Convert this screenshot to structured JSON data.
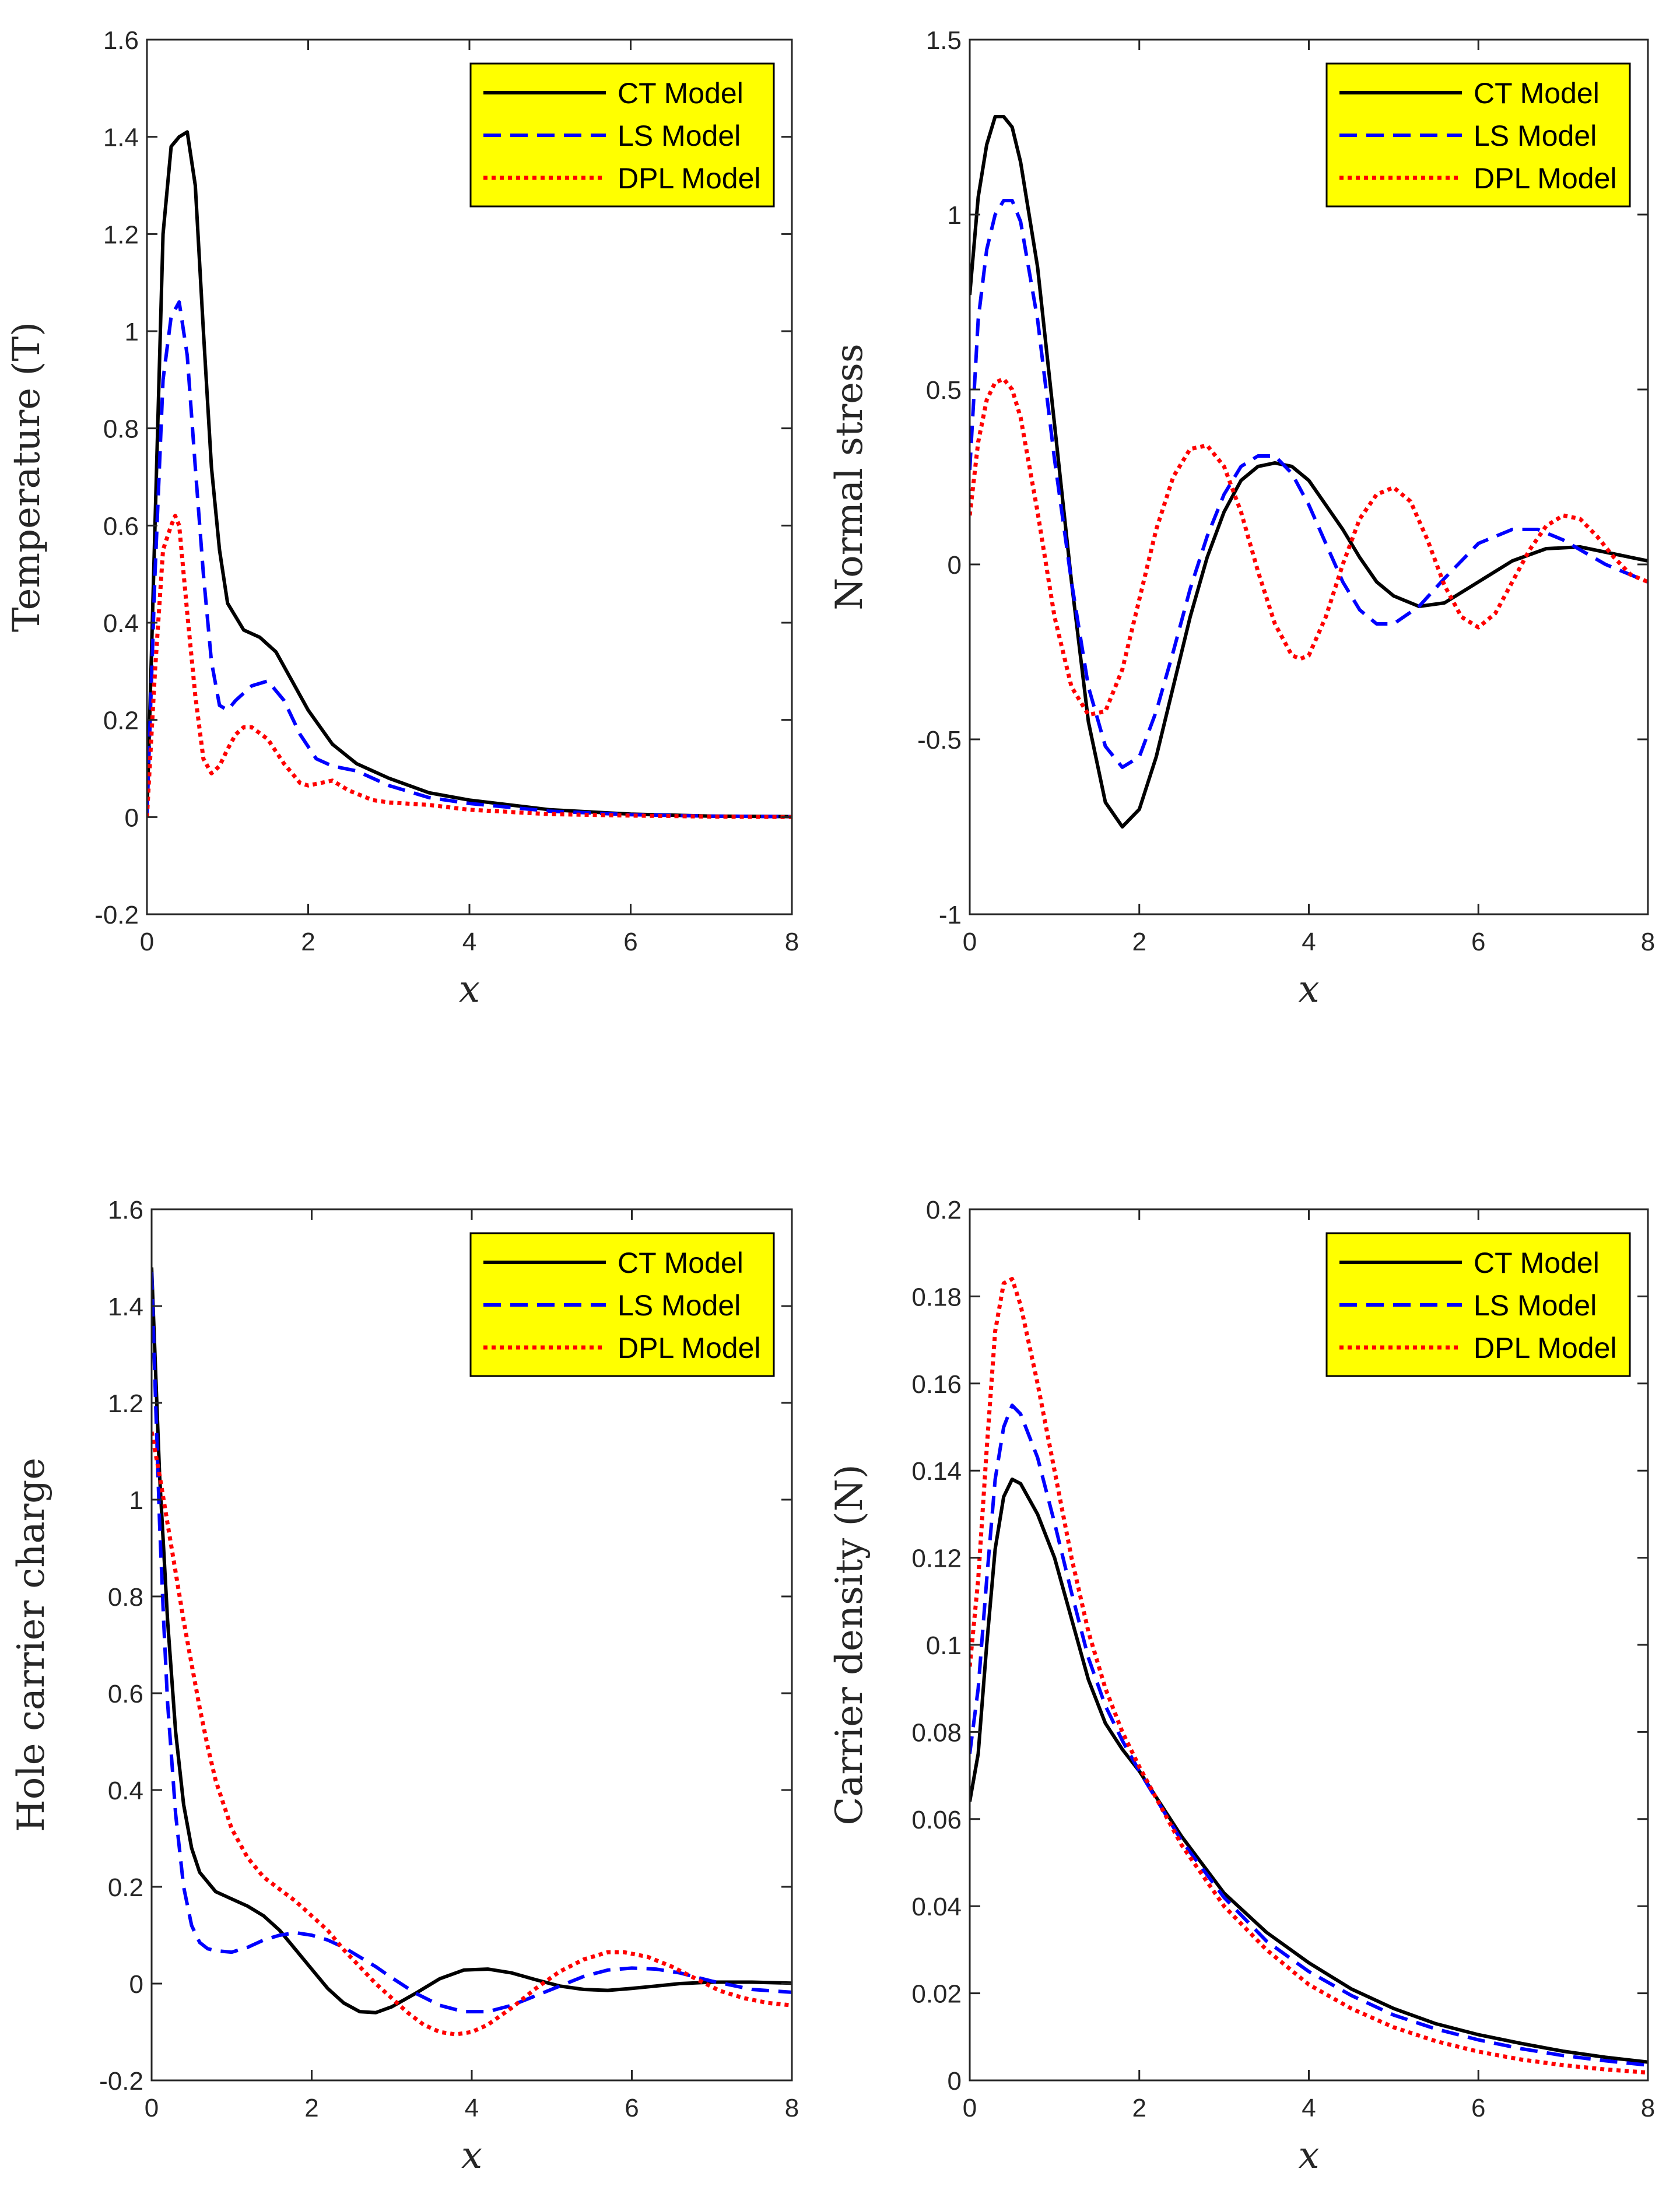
{
  "colors": {
    "ct": "#000000",
    "ls": "#0000ff",
    "dpl": "#ff0000",
    "legend_bg": "#ffff00",
    "axis": "#262626"
  },
  "chart_data": [
    {
      "type": "line",
      "xlabel": "x",
      "ylabel": "Temperature (T)",
      "xlim": [
        0,
        8
      ],
      "ylim": [
        -0.2,
        1.6
      ],
      "xticks": [
        "0",
        "2",
        "4",
        "6",
        "8"
      ],
      "yticks": [
        "-0.2",
        "0",
        "0.2",
        "0.4",
        "0.6",
        "0.8",
        "1",
        "1.2",
        "1.4",
        "1.6"
      ],
      "legend_location": "top-right",
      "series": [
        {
          "name": "CT Model",
          "style": "solid",
          "color": "#000000",
          "x": [
            0,
            0.1,
            0.2,
            0.3,
            0.4,
            0.5,
            0.6,
            0.7,
            0.8,
            0.9,
            1.0,
            1.2,
            1.4,
            1.6,
            1.8,
            2.0,
            2.3,
            2.6,
            3.0,
            3.5,
            4.0,
            5.0,
            6.0,
            7.0,
            8.0
          ],
          "y": [
            0,
            0.6,
            1.2,
            1.38,
            1.4,
            1.41,
            1.3,
            1.0,
            0.72,
            0.55,
            0.44,
            0.385,
            0.37,
            0.34,
            0.28,
            0.22,
            0.15,
            0.11,
            0.08,
            0.05,
            0.035,
            0.015,
            0.006,
            0.002,
            0.001
          ]
        },
        {
          "name": "LS Model",
          "style": "dashed",
          "color": "#0000ff",
          "x": [
            0,
            0.1,
            0.2,
            0.3,
            0.4,
            0.5,
            0.6,
            0.7,
            0.8,
            0.9,
            1.0,
            1.1,
            1.3,
            1.5,
            1.7,
            1.9,
            2.1,
            2.3,
            2.6,
            3.0,
            3.5,
            4.0,
            5.0,
            6.0,
            7.0,
            8.0
          ],
          "y": [
            0,
            0.5,
            0.9,
            1.03,
            1.06,
            0.95,
            0.72,
            0.5,
            0.32,
            0.23,
            0.22,
            0.24,
            0.27,
            0.28,
            0.24,
            0.17,
            0.12,
            0.105,
            0.095,
            0.065,
            0.04,
            0.028,
            0.012,
            0.005,
            0.002,
            0.001
          ]
        },
        {
          "name": "DPL Model",
          "style": "dotted",
          "color": "#ff0000",
          "x": [
            0,
            0.1,
            0.2,
            0.3,
            0.35,
            0.4,
            0.5,
            0.6,
            0.7,
            0.8,
            0.9,
            1.0,
            1.1,
            1.2,
            1.3,
            1.5,
            1.7,
            1.9,
            2.0,
            2.3,
            2.5,
            2.8,
            3.0,
            3.5,
            4.0,
            5.0,
            6.0,
            7.0,
            8.0
          ],
          "y": [
            0,
            0.3,
            0.55,
            0.6,
            0.62,
            0.6,
            0.42,
            0.25,
            0.12,
            0.09,
            0.105,
            0.14,
            0.17,
            0.185,
            0.185,
            0.16,
            0.11,
            0.07,
            0.065,
            0.075,
            0.055,
            0.035,
            0.03,
            0.025,
            0.015,
            0.006,
            0.003,
            0.001,
            0.0
          ]
        }
      ]
    },
    {
      "type": "line",
      "xlabel": "x",
      "ylabel": "Normal stress",
      "xlim": [
        0,
        8
      ],
      "ylim": [
        -1,
        1.5
      ],
      "xticks": [
        "0",
        "2",
        "4",
        "6",
        "8"
      ],
      "yticks": [
        "-1",
        "-0.5",
        "0",
        "0.5",
        "1",
        "1.5"
      ],
      "legend_location": "top-right",
      "series": [
        {
          "name": "CT Model",
          "style": "solid",
          "color": "#000000",
          "x": [
            0,
            0.1,
            0.2,
            0.3,
            0.4,
            0.5,
            0.6,
            0.8,
            1.0,
            1.2,
            1.4,
            1.6,
            1.8,
            2.0,
            2.2,
            2.4,
            2.6,
            2.8,
            3.0,
            3.2,
            3.4,
            3.6,
            3.8,
            4.0,
            4.2,
            4.4,
            4.6,
            4.8,
            5.0,
            5.3,
            5.6,
            6.0,
            6.4,
            6.8,
            7.2,
            7.6,
            8.0
          ],
          "y": [
            0.77,
            1.05,
            1.2,
            1.28,
            1.28,
            1.25,
            1.15,
            0.85,
            0.4,
            -0.05,
            -0.45,
            -0.68,
            -0.75,
            -0.7,
            -0.55,
            -0.35,
            -0.15,
            0.02,
            0.15,
            0.24,
            0.28,
            0.29,
            0.28,
            0.24,
            0.17,
            0.1,
            0.02,
            -0.05,
            -0.09,
            -0.12,
            -0.11,
            -0.05,
            0.01,
            0.045,
            0.05,
            0.03,
            0.01
          ]
        },
        {
          "name": "LS Model",
          "style": "dashed",
          "color": "#0000ff",
          "x": [
            0,
            0.1,
            0.2,
            0.3,
            0.4,
            0.5,
            0.6,
            0.8,
            1.0,
            1.2,
            1.4,
            1.6,
            1.8,
            2.0,
            2.2,
            2.4,
            2.6,
            2.8,
            3.0,
            3.2,
            3.4,
            3.6,
            3.8,
            4.0,
            4.2,
            4.4,
            4.6,
            4.8,
            5.0,
            5.3,
            5.6,
            6.0,
            6.4,
            6.7,
            7.0,
            7.5,
            8.0
          ],
          "y": [
            0.27,
            0.7,
            0.9,
            1.0,
            1.04,
            1.04,
            0.98,
            0.7,
            0.3,
            -0.05,
            -0.35,
            -0.52,
            -0.58,
            -0.55,
            -0.42,
            -0.25,
            -0.07,
            0.08,
            0.2,
            0.28,
            0.31,
            0.31,
            0.26,
            0.17,
            0.06,
            -0.05,
            -0.13,
            -0.17,
            -0.17,
            -0.12,
            -0.04,
            0.06,
            0.1,
            0.1,
            0.07,
            0.0,
            -0.05
          ]
        },
        {
          "name": "DPL Model",
          "style": "dotted",
          "color": "#ff0000",
          "x": [
            0,
            0.1,
            0.2,
            0.3,
            0.4,
            0.5,
            0.6,
            0.8,
            1.0,
            1.2,
            1.4,
            1.6,
            1.8,
            2.0,
            2.2,
            2.4,
            2.6,
            2.8,
            3.0,
            3.2,
            3.4,
            3.6,
            3.8,
            3.9,
            4.0,
            4.2,
            4.4,
            4.6,
            4.8,
            5.0,
            5.2,
            5.4,
            5.6,
            5.8,
            6.0,
            6.2,
            6.4,
            6.6,
            6.8,
            7.0,
            7.2,
            7.4,
            7.6,
            7.8,
            8.0
          ],
          "y": [
            0.14,
            0.35,
            0.47,
            0.52,
            0.53,
            0.5,
            0.42,
            0.15,
            -0.15,
            -0.35,
            -0.43,
            -0.42,
            -0.3,
            -0.1,
            0.1,
            0.25,
            0.33,
            0.34,
            0.28,
            0.15,
            -0.02,
            -0.17,
            -0.26,
            -0.27,
            -0.26,
            -0.15,
            0.0,
            0.13,
            0.2,
            0.22,
            0.18,
            0.07,
            -0.06,
            -0.15,
            -0.18,
            -0.14,
            -0.05,
            0.04,
            0.11,
            0.14,
            0.13,
            0.08,
            0.02,
            -0.03,
            -0.05
          ]
        }
      ]
    },
    {
      "type": "line",
      "xlabel": "x",
      "ylabel": "Hole carrier charge",
      "xlim": [
        0,
        8
      ],
      "ylim": [
        -0.2,
        1.6
      ],
      "xticks": [
        "0",
        "2",
        "4",
        "6",
        "8"
      ],
      "yticks": [
        "-0.2",
        "0",
        "0.2",
        "0.4",
        "0.6",
        "0.8",
        "1",
        "1.2",
        "1.4",
        "1.6"
      ],
      "legend_location": "top-right",
      "series": [
        {
          "name": "CT Model",
          "style": "solid",
          "color": "#000000",
          "x": [
            0,
            0.1,
            0.2,
            0.3,
            0.4,
            0.5,
            0.6,
            0.8,
            1.0,
            1.2,
            1.4,
            1.6,
            1.8,
            2.0,
            2.2,
            2.4,
            2.6,
            2.8,
            3.0,
            3.3,
            3.6,
            3.9,
            4.2,
            4.5,
            4.8,
            5.1,
            5.4,
            5.7,
            6.0,
            6.3,
            6.6,
            7.0,
            7.5,
            8.0
          ],
          "y": [
            1.48,
            1.05,
            0.75,
            0.52,
            0.37,
            0.28,
            0.23,
            0.19,
            0.175,
            0.16,
            0.14,
            0.11,
            0.07,
            0.03,
            -0.01,
            -0.04,
            -0.058,
            -0.06,
            -0.048,
            -0.02,
            0.01,
            0.028,
            0.03,
            0.022,
            0.008,
            -0.005,
            -0.012,
            -0.014,
            -0.01,
            -0.005,
            0.0,
            0.003,
            0.003,
            0.001
          ]
        },
        {
          "name": "LS Model",
          "style": "dashed",
          "color": "#0000ff",
          "x": [
            0,
            0.05,
            0.1,
            0.15,
            0.2,
            0.3,
            0.4,
            0.5,
            0.6,
            0.7,
            0.8,
            1.0,
            1.2,
            1.4,
            1.6,
            1.8,
            2.0,
            2.2,
            2.4,
            2.6,
            2.8,
            3.0,
            3.3,
            3.6,
            3.9,
            4.2,
            4.5,
            4.8,
            5.1,
            5.4,
            5.7,
            6.0,
            6.3,
            6.6,
            7.0,
            7.5,
            8.0
          ],
          "y": [
            1.47,
            1.2,
            0.95,
            0.75,
            0.58,
            0.35,
            0.2,
            0.12,
            0.085,
            0.072,
            0.068,
            0.065,
            0.075,
            0.09,
            0.1,
            0.105,
            0.1,
            0.09,
            0.075,
            0.055,
            0.035,
            0.012,
            -0.02,
            -0.045,
            -0.058,
            -0.058,
            -0.045,
            -0.025,
            -0.005,
            0.015,
            0.028,
            0.032,
            0.03,
            0.022,
            0.005,
            -0.012,
            -0.018
          ]
        },
        {
          "name": "DPL Model",
          "style": "dotted",
          "color": "#ff0000",
          "x": [
            0,
            0.1,
            0.2,
            0.3,
            0.4,
            0.5,
            0.6,
            0.7,
            0.8,
            1.0,
            1.2,
            1.4,
            1.6,
            1.8,
            2.0,
            2.2,
            2.4,
            2.6,
            2.8,
            3.0,
            3.2,
            3.4,
            3.6,
            3.8,
            4.0,
            4.2,
            4.5,
            4.8,
            5.1,
            5.4,
            5.7,
            5.9,
            6.2,
            6.5,
            6.8,
            7.1,
            7.4,
            7.7,
            8.0
          ],
          "y": [
            1.14,
            1.05,
            0.95,
            0.85,
            0.75,
            0.66,
            0.57,
            0.49,
            0.42,
            0.32,
            0.26,
            0.22,
            0.195,
            0.17,
            0.14,
            0.11,
            0.07,
            0.035,
            0.0,
            -0.03,
            -0.06,
            -0.085,
            -0.1,
            -0.105,
            -0.1,
            -0.085,
            -0.05,
            -0.01,
            0.025,
            0.05,
            0.065,
            0.065,
            0.055,
            0.035,
            0.01,
            -0.015,
            -0.03,
            -0.04,
            -0.045
          ]
        }
      ]
    },
    {
      "type": "line",
      "xlabel": "x",
      "ylabel": "Carrier density (N)",
      "xlim": [
        0,
        8
      ],
      "ylim": [
        0,
        0.2
      ],
      "xticks": [
        "0",
        "2",
        "4",
        "6",
        "8"
      ],
      "yticks": [
        "0",
        "0.02",
        "0.04",
        "0.06",
        "0.08",
        "0.1",
        "0.12",
        "0.14",
        "0.16",
        "0.18",
        "0.2"
      ],
      "legend_location": "top-right",
      "series": [
        {
          "name": "CT Model",
          "style": "solid",
          "color": "#000000",
          "x": [
            0,
            0.1,
            0.2,
            0.3,
            0.4,
            0.5,
            0.6,
            0.8,
            1.0,
            1.2,
            1.4,
            1.6,
            1.8,
            2.0,
            2.5,
            3.0,
            3.5,
            4.0,
            4.5,
            5.0,
            5.5,
            6.0,
            6.5,
            7.0,
            7.5,
            8.0
          ],
          "y": [
            0.064,
            0.075,
            0.1,
            0.122,
            0.134,
            0.138,
            0.137,
            0.13,
            0.12,
            0.106,
            0.092,
            0.082,
            0.076,
            0.071,
            0.056,
            0.043,
            0.034,
            0.027,
            0.021,
            0.0165,
            0.013,
            0.0105,
            0.0085,
            0.0067,
            0.0053,
            0.0042
          ]
        },
        {
          "name": "LS Model",
          "style": "dashed",
          "color": "#0000ff",
          "x": [
            0,
            0.1,
            0.2,
            0.3,
            0.4,
            0.5,
            0.6,
            0.8,
            1.0,
            1.2,
            1.4,
            1.6,
            1.8,
            2.0,
            2.5,
            3.0,
            3.5,
            4.0,
            4.5,
            5.0,
            5.5,
            6.0,
            6.5,
            7.0,
            7.5,
            8.0
          ],
          "y": [
            0.075,
            0.09,
            0.115,
            0.138,
            0.15,
            0.155,
            0.153,
            0.143,
            0.128,
            0.112,
            0.097,
            0.086,
            0.078,
            0.071,
            0.055,
            0.042,
            0.032,
            0.025,
            0.0195,
            0.015,
            0.0118,
            0.0093,
            0.0073,
            0.0057,
            0.0045,
            0.0035
          ]
        },
        {
          "name": "DPL Model",
          "style": "dotted",
          "color": "#ff0000",
          "x": [
            0,
            0.1,
            0.2,
            0.3,
            0.4,
            0.5,
            0.6,
            0.8,
            1.0,
            1.2,
            1.4,
            1.6,
            1.8,
            2.0,
            2.5,
            3.0,
            3.5,
            4.0,
            4.5,
            5.0,
            5.5,
            6.0,
            6.5,
            7.0,
            7.5,
            8.0
          ],
          "y": [
            0.095,
            0.115,
            0.145,
            0.172,
            0.183,
            0.184,
            0.178,
            0.16,
            0.14,
            0.12,
            0.103,
            0.09,
            0.08,
            0.072,
            0.054,
            0.04,
            0.03,
            0.022,
            0.0165,
            0.0122,
            0.009,
            0.0066,
            0.0048,
            0.0035,
            0.0025,
            0.0018
          ]
        }
      ]
    }
  ]
}
